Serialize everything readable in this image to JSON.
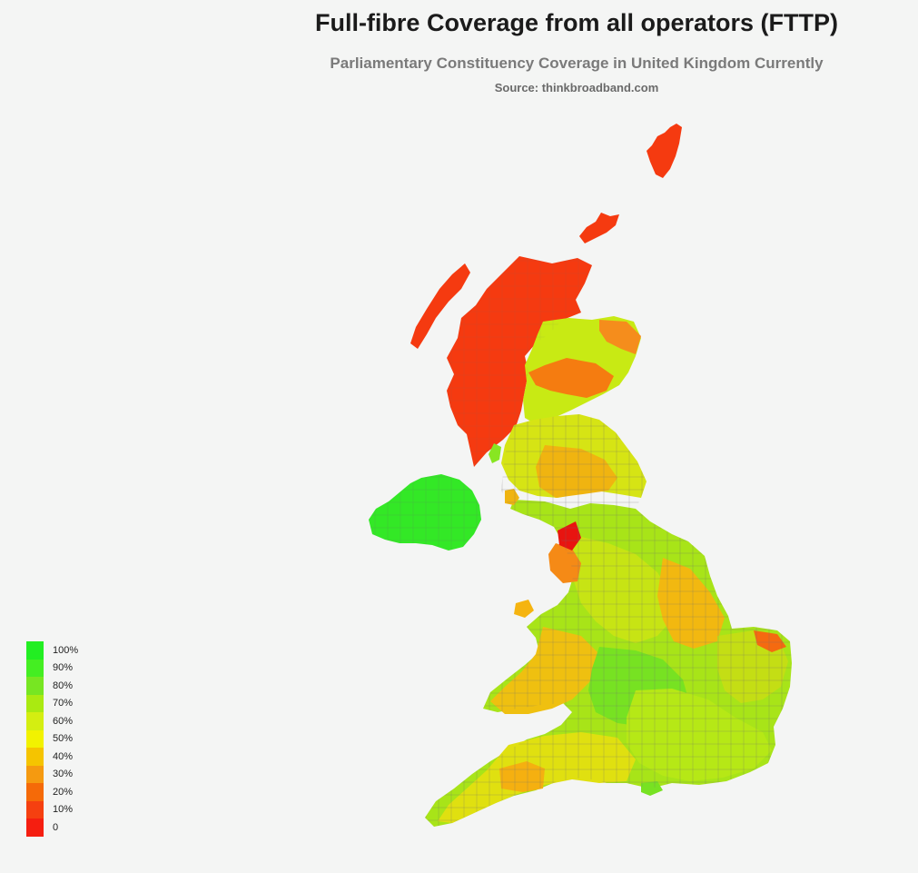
{
  "header": {
    "title": "Full-fibre Coverage from all operators (FTTP)",
    "subtitle": "Parliamentary Constituency Coverage in United Kingdom Currently",
    "source": "Source: thinkbroadband.com"
  },
  "legend": [
    {
      "label": "100%",
      "color": "#22ee22"
    },
    {
      "label": "90%",
      "color": "#44ee22"
    },
    {
      "label": "80%",
      "color": "#77e622"
    },
    {
      "label": "70%",
      "color": "#aaea11"
    },
    {
      "label": "60%",
      "color": "#d4ee11"
    },
    {
      "label": "50%",
      "color": "#f2f200"
    },
    {
      "label": "40%",
      "color": "#f5c400"
    },
    {
      "label": "30%",
      "color": "#f59a10"
    },
    {
      "label": "20%",
      "color": "#f56a08"
    },
    {
      "label": "10%",
      "color": "#f54010"
    },
    {
      "label": "0",
      "color": "#f51e10"
    }
  ]
}
